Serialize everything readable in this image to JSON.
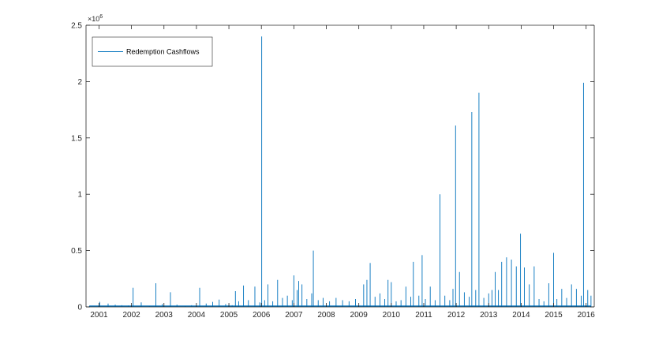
{
  "chart_data": {
    "type": "line",
    "title": "",
    "xlabel": "",
    "ylabel": "",
    "y_exponent_label": "×10",
    "y_exponent_power": "6",
    "x_range": [
      2000.6,
      2016.25
    ],
    "ylim": [
      0,
      2500000
    ],
    "grid": false,
    "legend": {
      "position": "top-left",
      "entries": [
        "Redemption Cashflows"
      ]
    },
    "x_ticks": [
      {
        "value": 2001,
        "label": "2001"
      },
      {
        "value": 2002,
        "label": "2002"
      },
      {
        "value": 2003,
        "label": "2003"
      },
      {
        "value": 2004,
        "label": "2004"
      },
      {
        "value": 2005,
        "label": "2005"
      },
      {
        "value": 2006,
        "label": "2006"
      },
      {
        "value": 2007,
        "label": "2007"
      },
      {
        "value": 2008,
        "label": "2008"
      },
      {
        "value": 2009,
        "label": "2009"
      },
      {
        "value": 2010,
        "label": "2010"
      },
      {
        "value": 2011,
        "label": "2011"
      },
      {
        "value": 2012,
        "label": "2012"
      },
      {
        "value": 2013,
        "label": "2013"
      },
      {
        "value": 2014,
        "label": "2014"
      },
      {
        "value": 2015,
        "label": "2015"
      },
      {
        "value": 2016,
        "label": "2016"
      }
    ],
    "y_ticks": [
      {
        "value": 0,
        "label": "0"
      },
      {
        "value": 500000,
        "label": "0.5"
      },
      {
        "value": 1000000,
        "label": "1"
      },
      {
        "value": 1500000,
        "label": "1.5"
      },
      {
        "value": 2000000,
        "label": "2"
      },
      {
        "value": 2500000,
        "label": "2.5"
      }
    ],
    "series": [
      {
        "name": "Redemption Cashflows",
        "color": "#0072bd",
        "x": [
          2000.7,
          2001.02,
          2001.28,
          2001.5,
          2001.7,
          2001.9,
          2002.05,
          2002.3,
          2002.55,
          2002.75,
          2002.95,
          2003.2,
          2003.4,
          2003.65,
          2003.85,
          2004.1,
          2004.3,
          2004.5,
          2004.7,
          2004.9,
          2005.0,
          2005.1,
          2005.2,
          2005.3,
          2005.45,
          2005.6,
          2005.8,
          2005.95,
          2006.01,
          2006.1,
          2006.2,
          2006.35,
          2006.5,
          2006.65,
          2006.8,
          2006.95,
          2007.0,
          2007.1,
          2007.15,
          2007.25,
          2007.4,
          2007.55,
          2007.6,
          2007.75,
          2007.9,
          2008.1,
          2008.3,
          2008.5,
          2008.7,
          2008.9,
          2009.15,
          2009.25,
          2009.35,
          2009.5,
          2009.65,
          2009.8,
          2009.9,
          2010.0,
          2010.15,
          2010.3,
          2010.45,
          2010.6,
          2010.68,
          2010.85,
          2010.95,
          2011.05,
          2011.2,
          2011.35,
          2011.5,
          2011.65,
          2011.8,
          2011.9,
          2011.98,
          2012.1,
          2012.25,
          2012.4,
          2012.48,
          2012.6,
          2012.7,
          2012.85,
          2013.0,
          2013.1,
          2013.2,
          2013.3,
          2013.4,
          2013.55,
          2013.7,
          2013.85,
          2013.98,
          2014.1,
          2014.25,
          2014.4,
          2014.55,
          2014.7,
          2014.85,
          2015.0,
          2015.1,
          2015.25,
          2015.4,
          2015.55,
          2015.7,
          2015.85,
          2015.92,
          2016.05,
          2016.15
        ],
        "values": [
          5000,
          45000,
          30000,
          20000,
          15000,
          12000,
          170000,
          40000,
          10000,
          210000,
          25000,
          130000,
          20000,
          10000,
          15000,
          170000,
          30000,
          45000,
          65000,
          25000,
          20000,
          15000,
          140000,
          50000,
          190000,
          60000,
          180000,
          40000,
          2400000,
          60000,
          200000,
          50000,
          240000,
          80000,
          100000,
          60000,
          280000,
          150000,
          230000,
          200000,
          70000,
          120000,
          500000,
          60000,
          80000,
          50000,
          80000,
          60000,
          50000,
          70000,
          200000,
          240000,
          390000,
          90000,
          120000,
          70000,
          240000,
          220000,
          50000,
          60000,
          180000,
          90000,
          400000,
          100000,
          460000,
          70000,
          180000,
          60000,
          1000000,
          100000,
          60000,
          160000,
          1610000,
          310000,
          130000,
          90000,
          1730000,
          150000,
          1900000,
          80000,
          120000,
          150000,
          310000,
          150000,
          400000,
          440000,
          420000,
          360000,
          650000,
          350000,
          200000,
          360000,
          70000,
          50000,
          210000,
          480000,
          70000,
          160000,
          80000,
          200000,
          160000,
          100000,
          1990000,
          150000,
          100000
        ]
      }
    ]
  }
}
